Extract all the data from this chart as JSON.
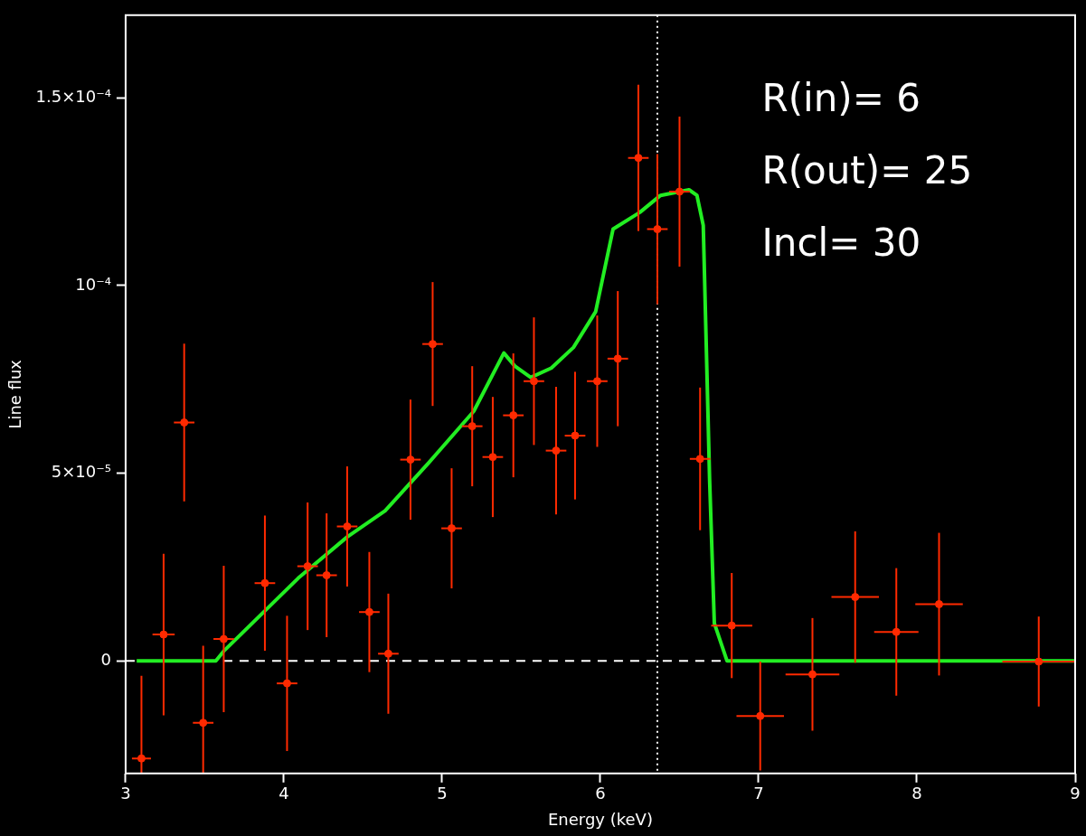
{
  "chart_data": {
    "type": "scatter",
    "xlabel": "Energy (keV)",
    "ylabel": "Line flux",
    "xlim": [
      3,
      9
    ],
    "xticks": [
      3,
      4,
      5,
      6,
      7,
      8,
      9
    ],
    "ylim": [
      -3e-05,
      0.000172
    ],
    "yticks": [
      0,
      {
        "value": 5e-05,
        "label": "5×10⁻⁵"
      },
      {
        "value": 0.0001,
        "label": "10⁻⁴"
      },
      {
        "value": 0.00015,
        "label": "1.5×10⁻⁴"
      }
    ],
    "grid": false,
    "legend": false,
    "marker": "circle",
    "series": [
      {
        "color": "#ff2a00",
        "x": [
          3.1,
          3.24,
          3.37,
          3.49,
          3.62,
          3.88,
          4.02,
          4.15,
          4.27,
          4.4,
          4.54,
          4.66,
          4.8,
          4.94,
          5.06,
          5.19,
          5.32,
          5.45,
          5.58,
          5.72,
          5.84,
          5.98,
          6.11,
          6.24,
          6.36,
          6.5,
          6.63,
          6.83,
          7.01,
          7.34,
          7.61,
          7.87,
          8.14,
          8.77
        ],
        "values": [
          -2.6e-05,
          7e-06,
          6.35e-05,
          -1.65e-05,
          5.8e-06,
          2.07e-05,
          -6e-06,
          2.52e-05,
          2.28e-05,
          3.58e-05,
          1.3e-05,
          1.9e-06,
          5.36e-05,
          8.44e-05,
          3.53e-05,
          6.25e-05,
          5.43e-05,
          6.54e-05,
          7.45e-05,
          5.6e-05,
          6e-05,
          7.45e-05,
          8.05e-05,
          0.000134,
          0.000115,
          0.000125,
          5.38e-05,
          9.4e-06,
          -1.47e-05,
          -3.6e-06,
          1.7e-05,
          7.7e-06,
          1.51e-05,
          -2e-07
        ],
        "errors": [
          [
            -3e-05,
            -4e-06
          ],
          2.15e-05,
          2.1e-05,
          [
            -3e-05,
            4e-06
          ],
          1.95e-05,
          1.8e-05,
          1.8e-05,
          1.7e-05,
          1.65e-05,
          1.6e-05,
          1.6e-05,
          1.6e-05,
          1.6e-05,
          1.65e-05,
          1.6e-05,
          1.6e-05,
          1.6e-05,
          1.65e-05,
          1.7e-05,
          1.7e-05,
          1.7e-05,
          1.75e-05,
          1.8e-05,
          1.95e-05,
          2e-05,
          2e-05,
          1.9e-05,
          1.4e-05,
          1.45e-05,
          1.5e-05,
          1.75e-05,
          1.7e-05,
          1.9e-05,
          1.2e-05
        ],
        "xerrors": [
          0.06,
          0.07,
          0.065,
          0.065,
          0.065,
          0.065,
          0.065,
          0.065,
          0.065,
          0.065,
          0.065,
          0.065,
          0.065,
          0.065,
          0.065,
          0.065,
          0.065,
          0.065,
          0.065,
          0.065,
          0.065,
          0.065,
          0.065,
          0.065,
          0.065,
          0.065,
          0.065,
          0.13,
          0.15,
          0.17,
          0.15,
          0.14,
          0.15,
          0.23
        ]
      },
      {
        "type": "line",
        "color": "#22ee22",
        "marker": "none",
        "x": [
          3.07,
          3.57,
          3.62,
          4.09,
          4.4,
          4.64,
          4.92,
          5.2,
          5.39,
          5.46,
          5.56,
          5.69,
          5.83,
          5.97,
          6.01,
          6.08,
          6.25,
          6.38,
          6.56,
          6.61,
          6.65,
          6.69,
          6.72,
          6.8,
          9.0
        ],
        "values": [
          0,
          0,
          2.6e-06,
          2.2e-05,
          3.3e-05,
          4e-05,
          5.3e-05,
          6.65e-05,
          8.2e-05,
          7.85e-05,
          7.55e-05,
          7.8e-05,
          8.35e-05,
          9.3e-05,
          0.000101,
          0.000115,
          0.0001195,
          0.000124,
          0.0001255,
          0.000124,
          0.000116,
          4.85e-05,
          1e-05,
          0,
          0
        ]
      }
    ],
    "ref_lines": [
      {
        "axis": "y",
        "value": 0,
        "color": "#ffffff",
        "line_style": "dashed"
      },
      {
        "axis": "x",
        "value": 6.36,
        "color": "#ffffff",
        "line_style": "dotted"
      }
    ],
    "annotations": [
      "R(in)= 6",
      "R(out)= 25",
      "Incl= 30"
    ]
  }
}
